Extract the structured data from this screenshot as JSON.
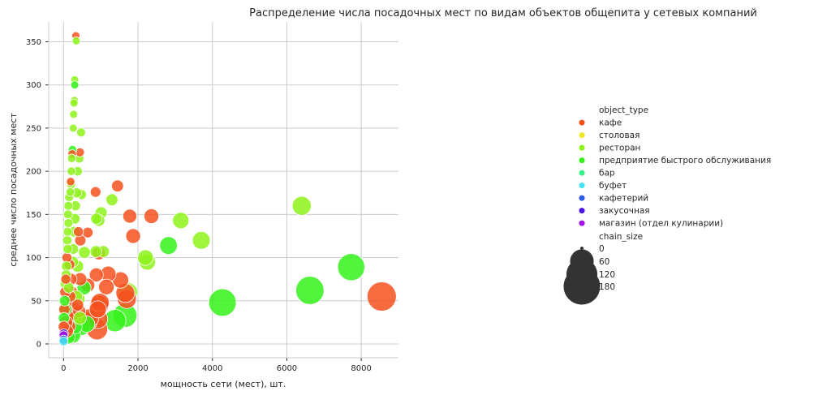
{
  "chart_data": {
    "type": "scatter",
    "title": "Распределение числа посадочных мест по видам объектов общепита у сетевых компаний",
    "xlabel": "мощность сети (мест), шт.",
    "ylabel": "среднее число посадочных мест",
    "xlim": [
      -400,
      9000
    ],
    "ylim": [
      -16,
      373
    ],
    "xticks": [
      0,
      2000,
      4000,
      6000,
      8000
    ],
    "yticks": [
      0,
      50,
      100,
      150,
      200,
      250,
      300,
      350
    ],
    "grid": true,
    "hue_title": "object_type",
    "size_title": "chain_size",
    "legend_placement": "center-right",
    "categories": [
      {
        "name": "кафе",
        "color": "#f4511e"
      },
      {
        "name": "столовая",
        "color": "#f1e52a"
      },
      {
        "name": "ресторан",
        "color": "#8ef21a"
      },
      {
        "name": "предприятие быстрого обслуживания",
        "color": "#34f21a"
      },
      {
        "name": "бар",
        "color": "#38f08a"
      },
      {
        "name": "буфет",
        "color": "#45e3f0"
      },
      {
        "name": "кафетерий",
        "color": "#2f5de8"
      },
      {
        "name": "закусочная",
        "color": "#4b10e8"
      },
      {
        "name": "магазин (отдел кулинарии)",
        "color": "#a310e8"
      }
    ],
    "size_levels": [
      0,
      60,
      120,
      180
    ],
    "points": [
      [
        8550,
        55,
        0,
        180
      ],
      [
        6620,
        62,
        3,
        165
      ],
      [
        7730,
        89,
        3,
        150
      ],
      [
        4270,
        48,
        3,
        155
      ],
      [
        6400,
        160,
        2,
        60
      ],
      [
        3700,
        120,
        2,
        50
      ],
      [
        3150,
        143,
        2,
        40
      ],
      [
        2820,
        114,
        3,
        50
      ],
      [
        2250,
        95,
        2,
        40
      ],
      [
        2200,
        100,
        2,
        35
      ],
      [
        2360,
        148,
        0,
        30
      ],
      [
        1870,
        125,
        0,
        30
      ],
      [
        1780,
        148,
        0,
        25
      ],
      [
        1730,
        60,
        2,
        60
      ],
      [
        1650,
        33,
        3,
        110
      ],
      [
        1700,
        52,
        0,
        60
      ],
      [
        1660,
        59,
        0,
        60
      ],
      [
        1380,
        27,
        3,
        90
      ],
      [
        1450,
        183,
        0,
        15
      ],
      [
        1300,
        167,
        2,
        15
      ],
      [
        1530,
        74,
        0,
        40
      ],
      [
        1200,
        81,
        0,
        35
      ],
      [
        1150,
        66,
        0,
        35
      ],
      [
        1070,
        107,
        2,
        15
      ],
      [
        1010,
        152,
        2,
        15
      ],
      [
        980,
        48,
        0,
        55
      ],
      [
        960,
        45,
        0,
        60
      ],
      [
        920,
        40,
        0,
        45
      ],
      [
        930,
        29,
        0,
        60
      ],
      [
        900,
        17,
        0,
        80
      ],
      [
        880,
        80,
        0,
        25
      ],
      [
        950,
        105,
        0,
        20
      ],
      [
        950,
        143,
        2,
        15
      ],
      [
        880,
        145,
        2,
        12
      ],
      [
        870,
        107,
        2,
        15
      ],
      [
        860,
        176,
        0,
        10
      ],
      [
        700,
        30,
        0,
        55
      ],
      [
        650,
        26,
        0,
        60
      ],
      [
        620,
        23,
        3,
        40
      ],
      [
        650,
        68,
        0,
        25
      ],
      [
        650,
        129,
        0,
        10
      ],
      [
        550,
        65,
        3,
        25
      ],
      [
        560,
        106,
        2,
        15
      ],
      [
        470,
        20,
        3,
        50
      ],
      [
        450,
        75,
        0,
        20
      ],
      [
        450,
        120,
        0,
        12
      ],
      [
        480,
        173,
        2,
        8
      ],
      [
        470,
        245,
        2,
        5
      ],
      [
        440,
        222,
        0,
        5
      ],
      [
        400,
        52,
        2,
        20
      ],
      [
        380,
        90,
        2,
        15
      ],
      [
        400,
        130,
        0,
        8
      ],
      [
        330,
        357,
        0,
        3
      ],
      [
        340,
        351,
        2,
        3
      ],
      [
        300,
        306,
        2,
        3
      ],
      [
        300,
        300,
        3,
        3
      ],
      [
        290,
        282,
        2,
        3
      ],
      [
        280,
        279,
        2,
        3
      ],
      [
        270,
        266,
        2,
        3
      ],
      [
        260,
        250,
        2,
        3
      ],
      [
        240,
        225,
        3,
        4
      ],
      [
        230,
        220,
        0,
        4
      ],
      [
        220,
        215,
        2,
        4
      ],
      [
        210,
        200,
        2,
        4
      ],
      [
        190,
        188,
        0,
        4
      ],
      [
        180,
        176,
        2,
        4
      ],
      [
        200,
        185,
        2,
        5
      ],
      [
        150,
        170,
        2,
        5
      ],
      [
        130,
        160,
        2,
        5
      ],
      [
        120,
        150,
        2,
        5
      ],
      [
        130,
        140,
        2,
        5
      ],
      [
        110,
        130,
        2,
        5
      ],
      [
        100,
        120,
        2,
        6
      ],
      [
        110,
        110,
        2,
        6
      ],
      [
        90,
        100,
        0,
        8
      ],
      [
        80,
        90,
        2,
        8
      ],
      [
        70,
        80,
        2,
        8
      ],
      [
        60,
        75,
        0,
        8
      ],
      [
        50,
        70,
        2,
        10
      ],
      [
        40,
        60,
        0,
        10
      ],
      [
        30,
        50,
        3,
        10
      ],
      [
        20,
        40,
        0,
        12
      ],
      [
        10,
        30,
        3,
        12
      ],
      [
        5,
        20,
        0,
        12
      ],
      [
        5,
        12,
        7,
        6
      ],
      [
        0,
        10,
        8,
        5
      ],
      [
        0,
        5,
        6,
        5
      ],
      [
        0,
        3,
        5,
        5
      ],
      [
        250,
        95,
        2,
        12
      ],
      [
        260,
        110,
        2,
        10
      ],
      [
        280,
        130,
        2,
        10
      ],
      [
        300,
        145,
        2,
        10
      ],
      [
        320,
        160,
        2,
        8
      ],
      [
        350,
        175,
        2,
        8
      ],
      [
        380,
        200,
        2,
        6
      ],
      [
        420,
        215,
        2,
        6
      ],
      [
        200,
        75,
        0,
        15
      ],
      [
        220,
        60,
        0,
        15
      ],
      [
        240,
        45,
        0,
        20
      ],
      [
        260,
        35,
        0,
        25
      ],
      [
        280,
        28,
        0,
        30
      ],
      [
        300,
        20,
        3,
        30
      ],
      [
        200,
        12,
        3,
        35
      ],
      [
        250,
        10,
        3,
        35
      ],
      [
        350,
        55,
        2,
        15
      ],
      [
        380,
        45,
        0,
        15
      ],
      [
        420,
        38,
        0,
        20
      ],
      [
        440,
        30,
        2,
        20
      ],
      [
        150,
        20,
        0,
        20
      ],
      [
        180,
        55,
        0,
        12
      ],
      [
        160,
        92,
        0,
        10
      ],
      [
        140,
        65,
        2,
        10
      ],
      [
        60,
        40,
        3,
        15
      ],
      [
        70,
        25,
        0,
        20
      ],
      [
        90,
        15,
        0,
        20
      ],
      [
        120,
        8,
        3,
        25
      ]
    ]
  }
}
